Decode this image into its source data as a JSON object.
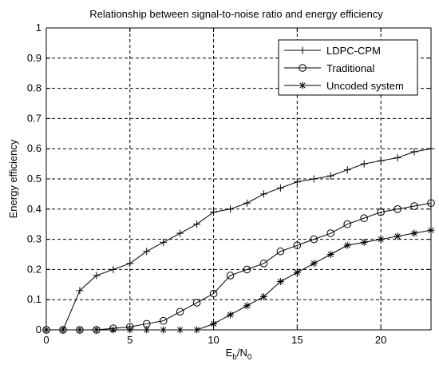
{
  "chart_data": {
    "type": "line",
    "title": "Relationship between signal-to-noise ratio and energy efficiency",
    "xlabel_main": "E",
    "xlabel_sub1": "b",
    "xlabel_mid": "/N",
    "xlabel_sub2": "0",
    "ylabel": "Energy efficiency",
    "xlim": [
      0,
      23
    ],
    "ylim": [
      0,
      1
    ],
    "xticks": [
      0,
      5,
      10,
      15,
      20
    ],
    "yticks": [
      0,
      0.1,
      0.2,
      0.3,
      0.4,
      0.5,
      0.6,
      0.7,
      0.8,
      0.9,
      1
    ],
    "xtick_labels": [
      "0",
      "5",
      "10",
      "15",
      "20"
    ],
    "ytick_labels": [
      "0",
      "0.1",
      "0.2",
      "0.3",
      "0.4",
      "0.5",
      "0.6",
      "0.7",
      "0.8",
      "0.9",
      "1"
    ],
    "grid": true,
    "legend_position": "top-right",
    "x": [
      0,
      1,
      2,
      3,
      4,
      5,
      6,
      7,
      8,
      9,
      10,
      11,
      12,
      13,
      14,
      15,
      16,
      17,
      18,
      19,
      20,
      21,
      22,
      23
    ],
    "series": [
      {
        "name": "LDPC-CPM",
        "marker": "plus",
        "values": [
          0,
          0,
          0.13,
          0.18,
          0.2,
          0.22,
          0.26,
          0.29,
          0.32,
          0.35,
          0.39,
          0.4,
          0.42,
          0.45,
          0.47,
          0.49,
          0.5,
          0.51,
          0.53,
          0.55,
          0.56,
          0.57,
          0.59,
          0.6
        ]
      },
      {
        "name": "Traditional",
        "marker": "circle",
        "values": [
          0,
          0,
          0,
          0,
          0.005,
          0.01,
          0.02,
          0.03,
          0.06,
          0.09,
          0.12,
          0.18,
          0.2,
          0.22,
          0.26,
          0.28,
          0.3,
          0.32,
          0.35,
          0.37,
          0.39,
          0.4,
          0.41,
          0.42
        ]
      },
      {
        "name": "Uncoded system",
        "marker": "asterisk",
        "values": [
          0,
          0,
          0,
          0,
          0,
          0,
          0,
          0,
          0,
          0,
          0.02,
          0.05,
          0.08,
          0.11,
          0.16,
          0.19,
          0.22,
          0.25,
          0.28,
          0.29,
          0.3,
          0.31,
          0.32,
          0.33
        ]
      }
    ],
    "line_color": "#000000"
  }
}
